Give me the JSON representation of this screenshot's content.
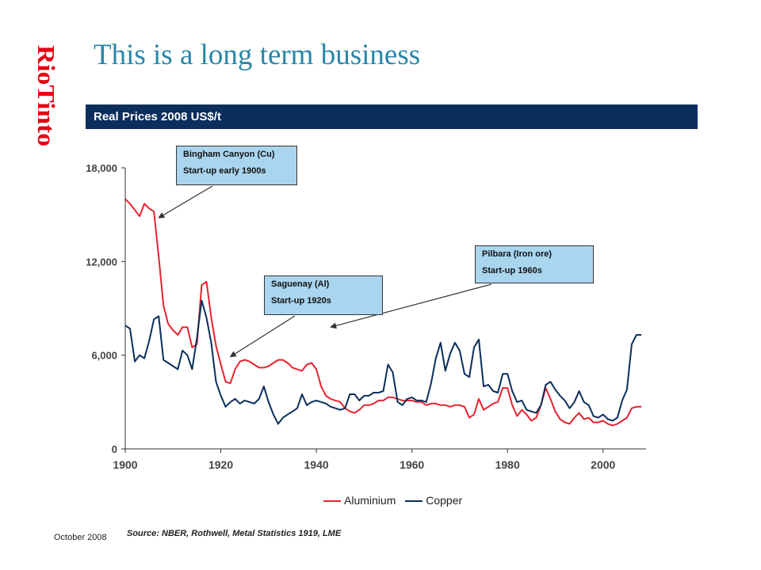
{
  "slide": {
    "title": "This is a long term business",
    "banner": "Real Prices 2008 US$/t",
    "date": "October 2008",
    "source": "Source: NBER, Rothwell, Metal Statistics 1919, LME",
    "logo": {
      "text": "RioTinto",
      "color": "#e30613"
    }
  },
  "callouts": [
    {
      "line1": "Bingham Canyon (Cu)",
      "line2": "Start-up early 1900s",
      "points_to": {
        "x": 1907,
        "y": 14800
      }
    },
    {
      "line1": "Saguenay (Al)",
      "line2": "Start-up 1920s",
      "points_to": {
        "x": 1922,
        "y": 5900
      }
    },
    {
      "line1": "Pilbara (Iron ore)",
      "line2": "Start-up 1960s",
      "points_to": {
        "x": 1943,
        "y": 7800
      }
    }
  ],
  "chart_data": {
    "type": "line",
    "title": "Real Prices 2008 US$/t",
    "xlim": [
      1900,
      2009
    ],
    "ylim": [
      0,
      18000
    ],
    "xticks": [
      1900,
      1920,
      1940,
      1960,
      1980,
      2000
    ],
    "xtick_labels": [
      "1900",
      "1920",
      "1940",
      "1960",
      "1980",
      "2000"
    ],
    "yticks": [
      0,
      6000,
      12000,
      18000
    ],
    "ytick_labels": [
      "0",
      "6,000",
      "12,000",
      "18,000"
    ],
    "grid": false,
    "legend": "bottom-center",
    "series": [
      {
        "name": "Aluminium",
        "color": "#e8222e",
        "points": [
          [
            1900,
            16000
          ],
          [
            1901,
            15700
          ],
          [
            1902,
            15300
          ],
          [
            1903,
            14900
          ],
          [
            1904,
            15700
          ],
          [
            1905,
            15400
          ],
          [
            1906,
            15200
          ],
          [
            1907,
            12300
          ],
          [
            1908,
            9200
          ],
          [
            1909,
            8000
          ],
          [
            1910,
            7600
          ],
          [
            1911,
            7300
          ],
          [
            1912,
            7800
          ],
          [
            1913,
            7800
          ],
          [
            1914,
            6500
          ],
          [
            1915,
            6700
          ],
          [
            1916,
            10500
          ],
          [
            1917,
            10700
          ],
          [
            1918,
            8400
          ],
          [
            1919,
            6600
          ],
          [
            1920,
            5400
          ],
          [
            1921,
            4300
          ],
          [
            1922,
            4200
          ],
          [
            1923,
            5100
          ],
          [
            1924,
            5600
          ],
          [
            1925,
            5700
          ],
          [
            1926,
            5600
          ],
          [
            1927,
            5400
          ],
          [
            1928,
            5200
          ],
          [
            1929,
            5200
          ],
          [
            1930,
            5300
          ],
          [
            1931,
            5500
          ],
          [
            1932,
            5700
          ],
          [
            1933,
            5700
          ],
          [
            1934,
            5500
          ],
          [
            1935,
            5200
          ],
          [
            1936,
            5100
          ],
          [
            1937,
            5000
          ],
          [
            1938,
            5400
          ],
          [
            1939,
            5500
          ],
          [
            1940,
            5100
          ],
          [
            1941,
            4000
          ],
          [
            1942,
            3400
          ],
          [
            1943,
            3200
          ],
          [
            1944,
            3100
          ],
          [
            1945,
            3000
          ],
          [
            1946,
            2600
          ],
          [
            1947,
            2400
          ],
          [
            1948,
            2300
          ],
          [
            1949,
            2500
          ],
          [
            1950,
            2800
          ],
          [
            1951,
            2800
          ],
          [
            1952,
            2900
          ],
          [
            1953,
            3100
          ],
          [
            1954,
            3100
          ],
          [
            1955,
            3300
          ],
          [
            1956,
            3300
          ],
          [
            1957,
            3200
          ],
          [
            1958,
            3100
          ],
          [
            1959,
            3100
          ],
          [
            1960,
            3100
          ],
          [
            1961,
            3000
          ],
          [
            1962,
            3000
          ],
          [
            1963,
            2800
          ],
          [
            1964,
            2900
          ],
          [
            1965,
            2900
          ],
          [
            1966,
            2800
          ],
          [
            1967,
            2800
          ],
          [
            1968,
            2700
          ],
          [
            1969,
            2800
          ],
          [
            1970,
            2800
          ],
          [
            1971,
            2700
          ],
          [
            1972,
            2000
          ],
          [
            1973,
            2200
          ],
          [
            1974,
            3200
          ],
          [
            1975,
            2500
          ],
          [
            1976,
            2700
          ],
          [
            1977,
            2900
          ],
          [
            1978,
            3000
          ],
          [
            1979,
            3900
          ],
          [
            1980,
            3900
          ],
          [
            1981,
            2800
          ],
          [
            1982,
            2100
          ],
          [
            1983,
            2500
          ],
          [
            1984,
            2200
          ],
          [
            1985,
            1800
          ],
          [
            1986,
            2000
          ],
          [
            1987,
            2800
          ],
          [
            1988,
            3900
          ],
          [
            1989,
            3200
          ],
          [
            1990,
            2400
          ],
          [
            1991,
            1900
          ],
          [
            1992,
            1700
          ],
          [
            1993,
            1600
          ],
          [
            1994,
            2000
          ],
          [
            1995,
            2300
          ],
          [
            1996,
            1900
          ],
          [
            1997,
            2000
          ],
          [
            1998,
            1700
          ],
          [
            1999,
            1700
          ],
          [
            2000,
            1800
          ],
          [
            2001,
            1600
          ],
          [
            2002,
            1500
          ],
          [
            2003,
            1600
          ],
          [
            2004,
            1800
          ],
          [
            2005,
            2000
          ],
          [
            2006,
            2600
          ],
          [
            2007,
            2700
          ],
          [
            2008,
            2700
          ]
        ]
      },
      {
        "name": "Copper",
        "color": "#0b2e5c",
        "points": [
          [
            1900,
            7900
          ],
          [
            1901,
            7700
          ],
          [
            1902,
            5600
          ],
          [
            1903,
            6000
          ],
          [
            1904,
            5800
          ],
          [
            1905,
            6900
          ],
          [
            1906,
            8300
          ],
          [
            1907,
            8500
          ],
          [
            1908,
            5700
          ],
          [
            1909,
            5500
          ],
          [
            1910,
            5300
          ],
          [
            1911,
            5100
          ],
          [
            1912,
            6300
          ],
          [
            1913,
            6000
          ],
          [
            1914,
            5100
          ],
          [
            1915,
            7100
          ],
          [
            1916,
            9500
          ],
          [
            1917,
            8400
          ],
          [
            1918,
            6800
          ],
          [
            1919,
            4300
          ],
          [
            1920,
            3400
          ],
          [
            1921,
            2700
          ],
          [
            1922,
            3000
          ],
          [
            1923,
            3200
          ],
          [
            1924,
            2900
          ],
          [
            1925,
            3100
          ],
          [
            1926,
            3000
          ],
          [
            1927,
            2900
          ],
          [
            1928,
            3200
          ],
          [
            1929,
            4000
          ],
          [
            1930,
            3000
          ],
          [
            1931,
            2200
          ],
          [
            1932,
            1600
          ],
          [
            1933,
            2000
          ],
          [
            1934,
            2200
          ],
          [
            1935,
            2400
          ],
          [
            1936,
            2600
          ],
          [
            1937,
            3500
          ],
          [
            1938,
            2800
          ],
          [
            1939,
            3000
          ],
          [
            1940,
            3100
          ],
          [
            1941,
            3000
          ],
          [
            1942,
            2900
          ],
          [
            1943,
            2700
          ],
          [
            1944,
            2600
          ],
          [
            1945,
            2500
          ],
          [
            1946,
            2600
          ],
          [
            1947,
            3500
          ],
          [
            1948,
            3500
          ],
          [
            1949,
            3100
          ],
          [
            1950,
            3400
          ],
          [
            1951,
            3400
          ],
          [
            1952,
            3600
          ],
          [
            1953,
            3600
          ],
          [
            1954,
            3700
          ],
          [
            1955,
            5400
          ],
          [
            1956,
            4900
          ],
          [
            1957,
            3000
          ],
          [
            1958,
            2800
          ],
          [
            1959,
            3200
          ],
          [
            1960,
            3300
          ],
          [
            1961,
            3100
          ],
          [
            1962,
            3100
          ],
          [
            1963,
            3000
          ],
          [
            1964,
            4200
          ],
          [
            1965,
            5800
          ],
          [
            1966,
            6800
          ],
          [
            1967,
            5000
          ],
          [
            1968,
            6100
          ],
          [
            1969,
            6800
          ],
          [
            1970,
            6300
          ],
          [
            1971,
            4800
          ],
          [
            1972,
            4600
          ],
          [
            1973,
            6500
          ],
          [
            1974,
            7000
          ],
          [
            1975,
            4000
          ],
          [
            1976,
            4100
          ],
          [
            1977,
            3700
          ],
          [
            1978,
            3600
          ],
          [
            1979,
            4800
          ],
          [
            1980,
            4800
          ],
          [
            1981,
            3700
          ],
          [
            1982,
            3000
          ],
          [
            1983,
            3100
          ],
          [
            1984,
            2500
          ],
          [
            1985,
            2400
          ],
          [
            1986,
            2300
          ],
          [
            1987,
            2800
          ],
          [
            1988,
            4100
          ],
          [
            1989,
            4300
          ],
          [
            1990,
            3800
          ],
          [
            1991,
            3400
          ],
          [
            1992,
            3100
          ],
          [
            1993,
            2600
          ],
          [
            1994,
            3000
          ],
          [
            1995,
            3700
          ],
          [
            1996,
            3000
          ],
          [
            1997,
            2800
          ],
          [
            1998,
            2100
          ],
          [
            1999,
            2000
          ],
          [
            2000,
            2200
          ],
          [
            2001,
            1900
          ],
          [
            2002,
            1800
          ],
          [
            2003,
            2000
          ],
          [
            2004,
            3100
          ],
          [
            2005,
            3800
          ],
          [
            2006,
            6700
          ],
          [
            2007,
            7300
          ],
          [
            2008,
            7300
          ]
        ]
      }
    ]
  }
}
